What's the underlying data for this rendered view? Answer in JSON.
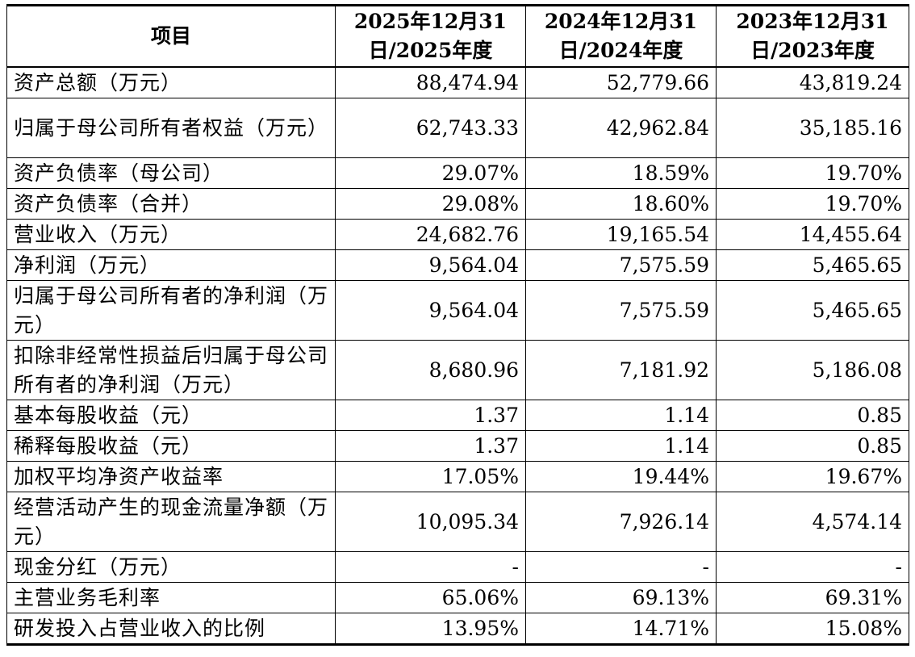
{
  "table": {
    "headers": [
      "项目",
      "2025年12月31日/2025年度",
      "2024年12月31日/2024年度",
      "2023年12月31日/2023年度"
    ],
    "rows": [
      {
        "label": "资产总额（万元）",
        "values": [
          "88,474.94",
          "52,779.66",
          "43,819.24"
        ],
        "lines": 1
      },
      {
        "label": "归属于母公司所有者权益（万元）",
        "values": [
          "62,743.33",
          "42,962.84",
          "35,185.16"
        ],
        "lines": 2
      },
      {
        "label": "资产负债率（母公司）",
        "values": [
          "29.07%",
          "18.59%",
          "19.70%"
        ],
        "lines": 1
      },
      {
        "label": "资产负债率（合并）",
        "values": [
          "29.08%",
          "18.60%",
          "19.70%"
        ],
        "lines": 1
      },
      {
        "label": "营业收入（万元）",
        "values": [
          "24,682.76",
          "19,165.54",
          "14,455.64"
        ],
        "lines": 1
      },
      {
        "label": "净利润（万元）",
        "values": [
          "9,564.04",
          "7,575.59",
          "5,465.65"
        ],
        "lines": 1
      },
      {
        "label": "归属于母公司所有者的净利润（万元）",
        "values": [
          "9,564.04",
          "7,575.59",
          "5,465.65"
        ],
        "lines": 2
      },
      {
        "label": "扣除非经常性损益后归属于母公司所有者的净利润（万元）",
        "values": [
          "8,680.96",
          "7,181.92",
          "5,186.08"
        ],
        "lines": 2
      },
      {
        "label": "基本每股收益（元）",
        "values": [
          "1.37",
          "1.14",
          "0.85"
        ],
        "lines": 1
      },
      {
        "label": "稀释每股收益（元）",
        "values": [
          "1.37",
          "1.14",
          "0.85"
        ],
        "lines": 1
      },
      {
        "label": "加权平均净资产收益率",
        "values": [
          "17.05%",
          "19.44%",
          "19.67%"
        ],
        "lines": 1
      },
      {
        "label": "经营活动产生的现金流量净额（万元）",
        "values": [
          "10,095.34",
          "7,926.14",
          "4,574.14"
        ],
        "lines": 2
      },
      {
        "label": "现金分红（万元）",
        "values": [
          "-",
          "-",
          "-"
        ],
        "lines": 1
      },
      {
        "label": "主营业务毛利率",
        "values": [
          "65.06%",
          "69.13%",
          "69.31%"
        ],
        "lines": 1
      },
      {
        "label": "研发投入占营业收入的比例",
        "values": [
          "13.95%",
          "14.71%",
          "15.08%"
        ],
        "lines": 1
      }
    ]
  }
}
